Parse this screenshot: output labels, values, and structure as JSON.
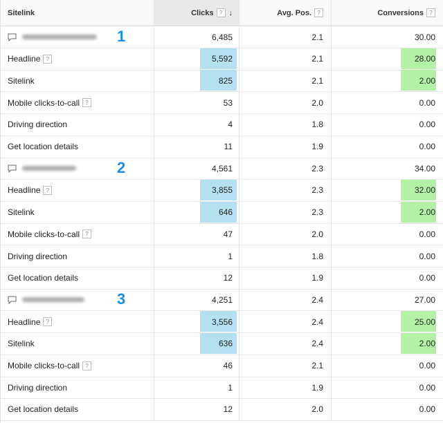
{
  "header": {
    "sitelink": "Sitelink",
    "clicks": "Clicks",
    "avg_pos": "Avg. Pos.",
    "conversions": "Conversions",
    "help": "?",
    "sort_arrow": "↓"
  },
  "groups": [
    {
      "badge": "1",
      "ad": {
        "clicks": "6,485",
        "avg_pos": "2.1",
        "conversions": "30.00"
      },
      "rows": [
        {
          "label": "Headline",
          "help": true,
          "clicks": "5,592",
          "avg_pos": "2.1",
          "conversions": "28.00",
          "hl_clicks": true,
          "hl_conv": true
        },
        {
          "label": "Sitelink",
          "help": false,
          "clicks": "825",
          "avg_pos": "2.1",
          "conversions": "2.00",
          "hl_clicks": true,
          "hl_conv": true
        },
        {
          "label": "Mobile clicks-to-call",
          "help": true,
          "clicks": "53",
          "avg_pos": "2.0",
          "conversions": "0.00"
        },
        {
          "label": "Driving direction",
          "help": false,
          "clicks": "4",
          "avg_pos": "1.8",
          "conversions": "0.00"
        },
        {
          "label": "Get location details",
          "help": false,
          "clicks": "11",
          "avg_pos": "1.9",
          "conversions": "0.00"
        }
      ]
    },
    {
      "badge": "2",
      "ad": {
        "clicks": "4,561",
        "avg_pos": "2.3",
        "conversions": "34.00"
      },
      "rows": [
        {
          "label": "Headline",
          "help": true,
          "clicks": "3,855",
          "avg_pos": "2.3",
          "conversions": "32.00",
          "hl_clicks": true,
          "hl_conv": true
        },
        {
          "label": "Sitelink",
          "help": false,
          "clicks": "646",
          "avg_pos": "2.3",
          "conversions": "2.00",
          "hl_clicks": true,
          "hl_conv": true
        },
        {
          "label": "Mobile clicks-to-call",
          "help": true,
          "clicks": "47",
          "avg_pos": "2.0",
          "conversions": "0.00"
        },
        {
          "label": "Driving direction",
          "help": false,
          "clicks": "1",
          "avg_pos": "1.8",
          "conversions": "0.00"
        },
        {
          "label": "Get location details",
          "help": false,
          "clicks": "12",
          "avg_pos": "1.9",
          "conversions": "0.00"
        }
      ]
    },
    {
      "badge": "3",
      "ad": {
        "clicks": "4,251",
        "avg_pos": "2.4",
        "conversions": "27.00"
      },
      "rows": [
        {
          "label": "Headline",
          "help": true,
          "clicks": "3,556",
          "avg_pos": "2.4",
          "conversions": "25.00",
          "hl_clicks": true,
          "hl_conv": true
        },
        {
          "label": "Sitelink",
          "help": false,
          "clicks": "636",
          "avg_pos": "2.4",
          "conversions": "2.00",
          "hl_clicks": true,
          "hl_conv": true
        },
        {
          "label": "Mobile clicks-to-call",
          "help": true,
          "clicks": "46",
          "avg_pos": "2.1",
          "conversions": "0.00"
        },
        {
          "label": "Driving direction",
          "help": false,
          "clicks": "1",
          "avg_pos": "1.9",
          "conversions": "0.00"
        },
        {
          "label": "Get location details",
          "help": false,
          "clicks": "12",
          "avg_pos": "2.0",
          "conversions": "0.00"
        }
      ]
    }
  ],
  "icons": {
    "ad_row": "speech-bubble-icon",
    "help": "help-icon",
    "sort": "sort-desc-icon"
  },
  "colors": {
    "clicks_highlight": "#b4e0ef",
    "conversions_highlight": "#b3f2a6",
    "badge": "#1b8ee4"
  }
}
